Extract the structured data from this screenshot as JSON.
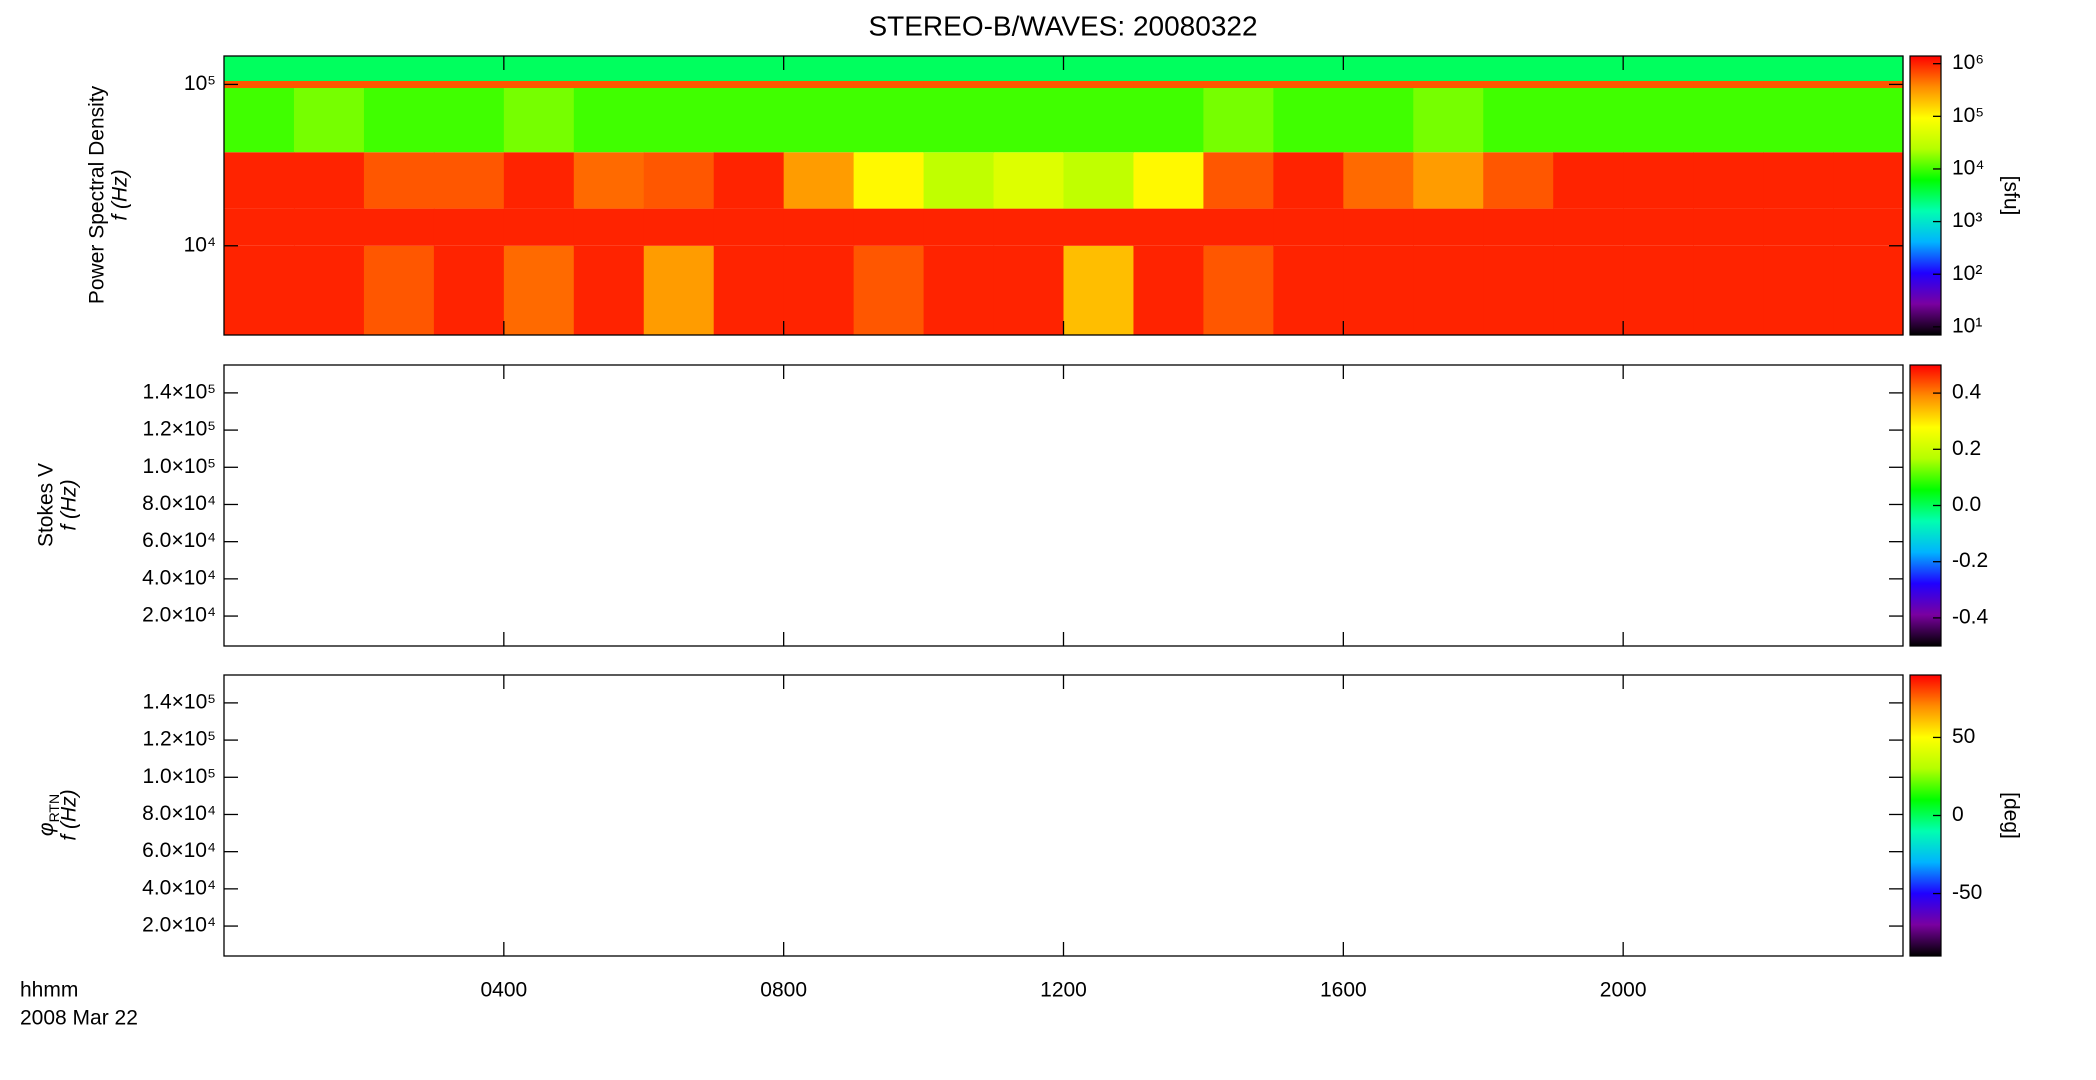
{
  "title": "STEREO-B/WAVES: 20080322",
  "x_label": "hhmm",
  "date_label": "2008 Mar 22",
  "colormap": [
    "#000000",
    "#7a00a0",
    "#2000ff",
    "#00b4ff",
    "#00ffb0",
    "#00ff00",
    "#b4ff00",
    "#ffff00",
    "#ff8c00",
    "#ff0000"
  ],
  "chart_data": [
    {
      "type": "heatmap",
      "ylabel": "Power Spectral Density",
      "yunit": "f (Hz)",
      "ylog": true,
      "ylim": [
        2800,
        150000
      ],
      "yticks": [
        {
          "value": 10000,
          "label": "10⁴"
        },
        {
          "value": 100000,
          "label": "10⁵"
        }
      ],
      "xlim": [
        0,
        24
      ],
      "x_bins": [
        0,
        1,
        2,
        3,
        4,
        5,
        6,
        7,
        8,
        9,
        10,
        11,
        12,
        13,
        14,
        15,
        16,
        17,
        18,
        19,
        20,
        21,
        22,
        23,
        24
      ],
      "y_bins": [
        2800,
        10000,
        17000,
        38000,
        95000,
        105000,
        150000
      ],
      "values": [
        [
          1000000,
          1000000,
          600000,
          1000000,
          500000,
          1000000,
          300000,
          1000000,
          1000000,
          600000,
          1000000,
          1000000,
          200000,
          1000000,
          600000,
          1000000,
          1000000,
          1000000,
          1000000,
          1000000,
          1000000,
          1000000,
          1000000,
          1000000
        ],
        [
          1000000,
          1000000,
          1000000,
          1000000,
          1000000,
          1000000,
          1000000,
          1000000,
          1000000,
          1000000,
          1000000,
          1000000,
          1000000,
          1000000,
          1000000,
          1000000,
          1000000,
          1000000,
          1000000,
          1000000,
          1000000,
          1000000,
          1000000,
          1000000
        ],
        [
          1000000,
          1000000,
          600000,
          600000,
          1000000,
          500000,
          600000,
          1000000,
          300000,
          100000,
          30000,
          50000,
          30000,
          100000,
          600000,
          1000000,
          500000,
          300000,
          600000,
          1000000,
          1000000,
          1000000,
          1000000,
          1000000
        ],
        [
          10000,
          15000,
          10000,
          10000,
          15000,
          10000,
          10000,
          10000,
          10000,
          10000,
          10000,
          10000,
          10000,
          10000,
          15000,
          10000,
          10000,
          15000,
          10000,
          10000,
          10000,
          10000,
          10000,
          10000
        ],
        [
          600000,
          600000,
          600000,
          600000,
          600000,
          600000,
          600000,
          600000,
          600000,
          600000,
          600000,
          600000,
          600000,
          600000,
          600000,
          600000,
          600000,
          600000,
          600000,
          600000,
          600000,
          600000,
          600000,
          600000
        ],
        [
          3000,
          3000,
          3000,
          3000,
          3000,
          3000,
          3000,
          3000,
          3000,
          3000,
          3000,
          3000,
          3000,
          3000,
          3000,
          3000,
          3000,
          3000,
          3000,
          3000,
          3000,
          3000,
          3000,
          3000
        ]
      ],
      "zlog": true,
      "zlim": [
        7,
        1400000
      ],
      "zticks": [
        {
          "value": 10,
          "label": "10¹"
        },
        {
          "value": 100,
          "label": "10²"
        },
        {
          "value": 1000,
          "label": "10³"
        },
        {
          "value": 10000,
          "label": "10⁴"
        },
        {
          "value": 100000,
          "label": "10⁵"
        },
        {
          "value": 1000000,
          "label": "10⁶"
        }
      ],
      "zlabel": "[sfu]"
    },
    {
      "type": "heatmap",
      "ylabel": "Stokes V",
      "yunit": "f (Hz)",
      "ylog": false,
      "ylim": [
        3900,
        155000
      ],
      "yticks": [
        {
          "value": 20000,
          "label": "2.0×10⁴"
        },
        {
          "value": 40000,
          "label": "4.0×10⁴"
        },
        {
          "value": 60000,
          "label": "6.0×10⁴"
        },
        {
          "value": 80000,
          "label": "8.0×10⁴"
        },
        {
          "value": 100000,
          "label": "1.0×10⁵"
        },
        {
          "value": 120000,
          "label": "1.2×10⁵"
        },
        {
          "value": 140000,
          "label": "1.4×10⁵"
        }
      ],
      "xlim": [
        0,
        24
      ],
      "zlog": false,
      "zlim": [
        -0.5,
        0.5
      ],
      "zticks": [
        -0.4,
        -0.2,
        {
          "value": 0,
          "label": "0.0"
        },
        0.2,
        0.4
      ]
    },
    {
      "type": "heatmap",
      "ylabel_symbol": "φ",
      "ylabel_subscript": "RTN",
      "yunit": "f (Hz)",
      "ylog": false,
      "ylim": [
        3900,
        155000
      ],
      "yticks": [
        {
          "value": 20000,
          "label": "2.0×10⁴"
        },
        {
          "value": 40000,
          "label": "4.0×10⁴"
        },
        {
          "value": 60000,
          "label": "6.0×10⁴"
        },
        {
          "value": 80000,
          "label": "8.0×10⁴"
        },
        {
          "value": 100000,
          "label": "1.0×10⁵"
        },
        {
          "value": 120000,
          "label": "1.2×10⁵"
        },
        {
          "value": 140000,
          "label": "1.4×10⁵"
        }
      ],
      "xlim": [
        0,
        24
      ],
      "xticks": [
        {
          "value": 4,
          "label": "0400"
        },
        {
          "value": 8,
          "label": "0800"
        },
        {
          "value": 12,
          "label": "1200"
        },
        {
          "value": 16,
          "label": "1600"
        },
        {
          "value": 20,
          "label": "2000"
        }
      ],
      "zlog": false,
      "zlim": [
        -90,
        90
      ],
      "zticks": [
        -50,
        0,
        50
      ],
      "zlabel": "[deg]"
    }
  ]
}
